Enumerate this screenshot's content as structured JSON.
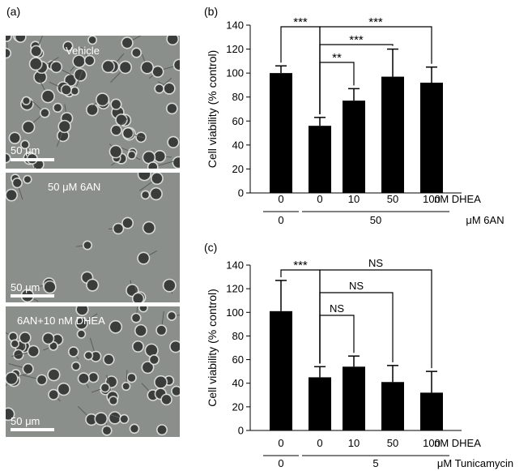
{
  "panel_labels": {
    "a": "(a)",
    "b": "(b)",
    "c": "(c)"
  },
  "micrographs": [
    {
      "label": "Vehicle",
      "scale_label": "50 μm"
    },
    {
      "label": "50 μM 6AN",
      "scale_label": "50 μm"
    },
    {
      "label": "6AN+10 nM DHEA",
      "scale_label": "50 μm"
    }
  ],
  "colors": {
    "bar": "#000000",
    "micro_bg": "#8a8f8c",
    "cell": "#3a3d3b",
    "halo": "#e4e7e4"
  },
  "chart_data": [
    {
      "type": "bar",
      "panel": "(b)",
      "ylabel": "Cell viability (% control)",
      "ylim": [
        0,
        140
      ],
      "yticks": [
        "0",
        "20",
        "40",
        "60",
        "80",
        "100",
        "120",
        "140"
      ],
      "categories": [
        "0",
        "0",
        "10",
        "50",
        "100"
      ],
      "values": [
        100,
        56,
        77,
        97,
        92
      ],
      "errors": [
        6,
        7,
        10,
        23,
        13
      ],
      "x_unit_row1": "nM DHEA",
      "group_row2": [
        {
          "label": "0",
          "from": 0,
          "to": 0
        },
        {
          "label": "50",
          "from": 1,
          "to": 4
        }
      ],
      "x_unit_row2": "μM 6AN",
      "significance": [
        {
          "from": 0,
          "to": 1,
          "label": "***"
        },
        {
          "from": 1,
          "to": 2,
          "label": "**"
        },
        {
          "from": 1,
          "to": 3,
          "label": "***"
        },
        {
          "from": 1,
          "to": 4,
          "label": "***"
        }
      ]
    },
    {
      "type": "bar",
      "panel": "(c)",
      "ylabel": "Cell viability (% control)",
      "ylim": [
        0,
        140
      ],
      "yticks": [
        "0",
        "20",
        "40",
        "60",
        "80",
        "100",
        "120",
        "140"
      ],
      "categories": [
        "0",
        "0",
        "10",
        "50",
        "100"
      ],
      "values": [
        101,
        45,
        54,
        41,
        32
      ],
      "errors": [
        26,
        9,
        9,
        14,
        18
      ],
      "x_unit_row1": "nM DHEA",
      "group_row2": [
        {
          "label": "0",
          "from": 0,
          "to": 0
        },
        {
          "label": "5",
          "from": 1,
          "to": 4
        }
      ],
      "x_unit_row2": "μM Tunicamycin",
      "significance": [
        {
          "from": 0,
          "to": 1,
          "label": "***"
        },
        {
          "from": 1,
          "to": 2,
          "label": "NS"
        },
        {
          "from": 1,
          "to": 3,
          "label": "NS"
        },
        {
          "from": 1,
          "to": 4,
          "label": "NS"
        }
      ]
    }
  ]
}
